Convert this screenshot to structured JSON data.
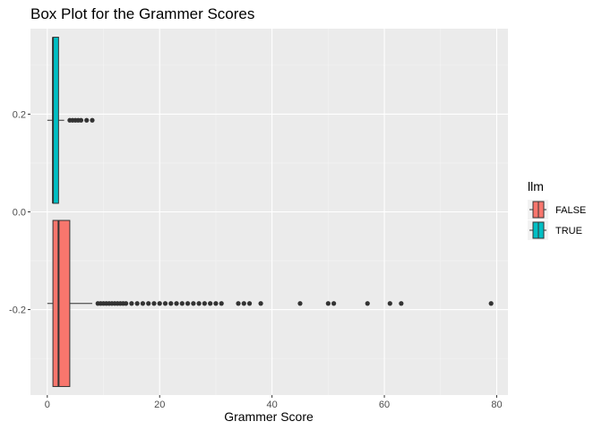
{
  "chart_data": {
    "type": "boxplot",
    "title": "Box Plot for the Grammer Scores",
    "xlabel": "Grammer Score",
    "ylabel": "",
    "orientation": "horizontal",
    "xlim": [
      -3,
      82
    ],
    "ylim": [
      -0.375,
      0.375
    ],
    "x_ticks": [
      0,
      20,
      40,
      60,
      80
    ],
    "y_ticks": [
      -0.2,
      0.0,
      0.2
    ],
    "y_tick_labels": [
      "-0.2",
      "0.0",
      "0.2"
    ],
    "grid": true,
    "legend": {
      "title": "llm",
      "position": "right",
      "entries": [
        {
          "label": "FALSE",
          "color": "#F8766D"
        },
        {
          "label": "TRUE",
          "color": "#00BFC4"
        }
      ]
    },
    "series": [
      {
        "name": "FALSE",
        "color": "#F8766D",
        "y_center": -0.1875,
        "half_height": 0.17,
        "whisker_low": 0,
        "q1": 1,
        "median": 2,
        "q3": 4,
        "whisker_high": 8,
        "outliers": [
          9,
          9.5,
          10,
          10.5,
          11,
          11.5,
          12,
          12.5,
          13,
          13.5,
          14,
          15,
          16,
          17,
          18,
          19,
          20,
          21,
          22,
          23,
          24,
          25,
          26,
          27,
          28,
          29,
          30,
          31,
          34,
          35,
          36,
          38,
          45,
          50,
          51,
          57,
          61,
          63,
          79
        ]
      },
      {
        "name": "TRUE",
        "color": "#00BFC4",
        "y_center": 0.1875,
        "half_height": 0.17,
        "whisker_low": 0,
        "q1": 1,
        "median": 1,
        "q3": 2,
        "whisker_high": 3,
        "outliers": [
          4,
          4.5,
          5,
          5.5,
          6,
          7,
          8
        ]
      }
    ]
  }
}
